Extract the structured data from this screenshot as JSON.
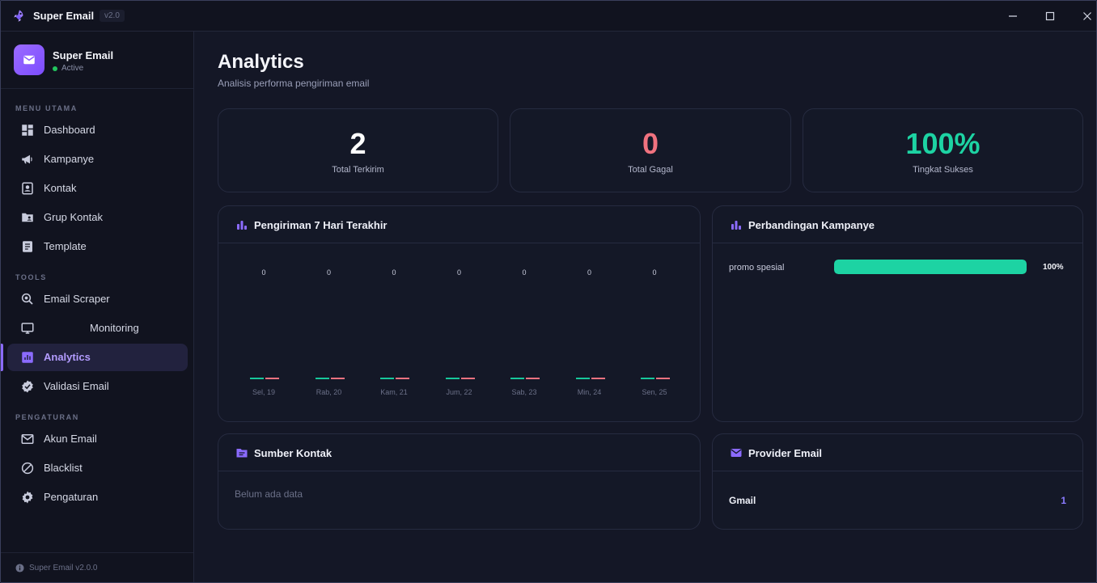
{
  "titlebar": {
    "title": "Super Email",
    "version": "v2.0"
  },
  "sidebar": {
    "brand_name": "Super Email",
    "brand_status": "Active",
    "sections": {
      "main": "MENU UTAMA",
      "tools": "TOOLS",
      "settings": "PENGATURAN"
    },
    "items": [
      {
        "label": "Dashboard",
        "icon": "dashboard-icon"
      },
      {
        "label": "Kampanye",
        "icon": "megaphone-icon"
      },
      {
        "label": "Kontak",
        "icon": "contact-card-icon"
      },
      {
        "label": "Grup Kontak",
        "icon": "folder-user-icon"
      },
      {
        "label": "Template",
        "icon": "document-icon"
      },
      {
        "label": "Email Scraper",
        "icon": "search-scan-icon"
      },
      {
        "label": "Monitoring",
        "icon": "monitor-icon"
      },
      {
        "label": "Analytics",
        "icon": "analytics-icon",
        "active": true
      },
      {
        "label": "Validasi Email",
        "icon": "verified-badge-icon"
      },
      {
        "label": "Akun Email",
        "icon": "mail-icon"
      },
      {
        "label": "Blacklist",
        "icon": "block-icon"
      },
      {
        "label": "Pengaturan",
        "icon": "gear-icon"
      }
    ],
    "footer": "Super Email v2.0.0"
  },
  "main": {
    "title": "Analytics",
    "subtitle": "Analisis performa pengiriman email",
    "stats": [
      {
        "value": "2",
        "label": "Total Terkirim",
        "color": "#ffffff"
      },
      {
        "value": "0",
        "label": "Total Gagal",
        "color": "#f0727f"
      },
      {
        "value": "100%",
        "label": "Tingkat Sukses",
        "color": "#1dd3a3"
      }
    ],
    "weekly_card": {
      "title": "Pengiriman 7 Hari Terakhir"
    },
    "campaign_card": {
      "title": "Perbandingan Kampanye",
      "items": [
        {
          "name": "promo spesial",
          "percent": 100,
          "percent_label": "100%"
        }
      ]
    },
    "source_card": {
      "title": "Sumber Kontak",
      "empty": "Belum ada data"
    },
    "provider_card": {
      "title": "Provider Email",
      "items": [
        {
          "name": "Gmail",
          "count": "1"
        }
      ]
    }
  },
  "chart_data": {
    "type": "bar",
    "categories": [
      "Sel, 19",
      "Rab, 20",
      "Kam, 21",
      "Jum, 22",
      "Sab, 23",
      "Min, 24",
      "Sen, 25"
    ],
    "series": [
      {
        "values": [
          0,
          0,
          0,
          0,
          0,
          0,
          0
        ],
        "color": "#17c79a"
      },
      {
        "values": [
          0,
          0,
          0,
          0,
          0,
          0,
          0
        ],
        "color": "#f0727f"
      }
    ],
    "value_labels": [
      "0",
      "0",
      "0",
      "0",
      "0",
      "0",
      "0"
    ]
  },
  "colors": {
    "accent": "#8b6bff",
    "success": "#1dd3a3",
    "danger": "#f0727f"
  }
}
